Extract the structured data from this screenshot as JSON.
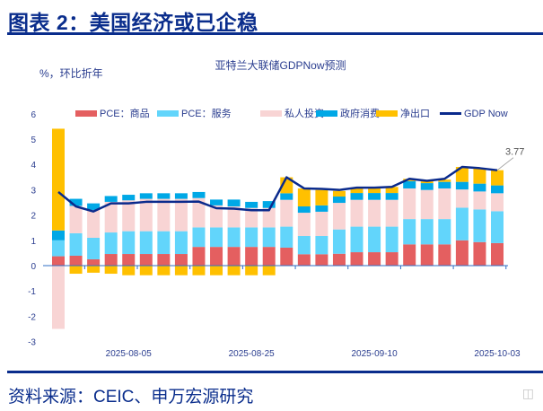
{
  "header": {
    "title": "图表 2：美国经济或已企稳"
  },
  "footer": {
    "source": "资料来源：CEIC、申万宏源研究",
    "watermark": "格隆汇"
  },
  "colors": {
    "brand": "#0a2d8c"
  },
  "chart_data": {
    "type": "bar",
    "stacked": true,
    "title": "亚特兰大联储GDPNow预测",
    "ylabel": "%，环比折年",
    "xlabel": "",
    "ylim": [
      -3,
      6
    ],
    "yticks": [
      -3,
      -2,
      -1,
      0,
      1,
      2,
      3,
      4,
      5,
      6
    ],
    "x_tick_labels": [
      {
        "index": 4,
        "label": "2025-08-05"
      },
      {
        "index": 11,
        "label": "2025-08-25"
      },
      {
        "index": 18,
        "label": "2025-09-10"
      },
      {
        "index": 25,
        "label": "2025-10-03"
      }
    ],
    "grid": false,
    "legend": "top",
    "series": [
      {
        "name": "PCE：商品",
        "color": "#e45f60",
        "values": [
          0.37,
          0.39,
          0.25,
          0.46,
          0.46,
          0.46,
          0.46,
          0.46,
          0.74,
          0.74,
          0.74,
          0.74,
          0.74,
          0.71,
          0.45,
          0.45,
          0.47,
          0.53,
          0.53,
          0.53,
          0.84,
          0.84,
          0.84,
          1.0,
          0.93,
          0.89
        ]
      },
      {
        "name": "PCE：服务",
        "color": "#62d5fb",
        "values": [
          0.63,
          0.89,
          0.85,
          0.85,
          0.9,
          0.9,
          0.9,
          0.9,
          0.77,
          0.77,
          0.77,
          0.77,
          0.77,
          0.83,
          0.72,
          0.72,
          0.96,
          1.01,
          1.01,
          1.01,
          1.0,
          1.0,
          1.0,
          1.29,
          1.29,
          1.26
        ]
      },
      {
        "name": "私人投资",
        "color": "#f8d4d4",
        "values": [
          -2.5,
          1.08,
          1.1,
          1.21,
          1.22,
          1.28,
          1.28,
          1.28,
          1.16,
          0.87,
          0.83,
          0.77,
          0.77,
          1.06,
          0.92,
          0.96,
          1.05,
          1.06,
          1.06,
          1.06,
          1.21,
          1.15,
          1.21,
          0.72,
          0.71,
          0.71
        ]
      },
      {
        "name": "政府消费",
        "color": "#00a8e6",
        "values": [
          0.39,
          0.28,
          0.26,
          0.23,
          0.22,
          0.22,
          0.22,
          0.22,
          0.24,
          0.23,
          0.27,
          0.24,
          0.27,
          0.26,
          0.25,
          0.25,
          0.25,
          0.27,
          0.27,
          0.27,
          0.29,
          0.27,
          0.26,
          0.3,
          0.31,
          0.31
        ]
      },
      {
        "name": "净出口",
        "color": "#ffc000",
        "values": [
          4.02,
          -0.32,
          -0.28,
          -0.32,
          -0.38,
          -0.38,
          -0.38,
          -0.38,
          -0.38,
          -0.38,
          -0.38,
          -0.38,
          -0.38,
          0.63,
          0.71,
          0.61,
          0.22,
          0.18,
          0.18,
          0.24,
          0.09,
          0.07,
          0.09,
          0.59,
          0.59,
          0.6
        ]
      }
    ],
    "line": {
      "name": "GDP Now",
      "color": "#0a2a8c",
      "values": [
        2.91,
        2.34,
        2.14,
        2.46,
        2.46,
        2.52,
        2.52,
        2.52,
        2.53,
        2.27,
        2.25,
        2.19,
        2.19,
        3.49,
        3.05,
        3.03,
        2.99,
        3.08,
        3.08,
        3.11,
        3.43,
        3.35,
        3.43,
        3.9,
        3.85,
        3.77
      ]
    },
    "annotations": [
      {
        "index": 25,
        "label": "3.77"
      }
    ]
  }
}
